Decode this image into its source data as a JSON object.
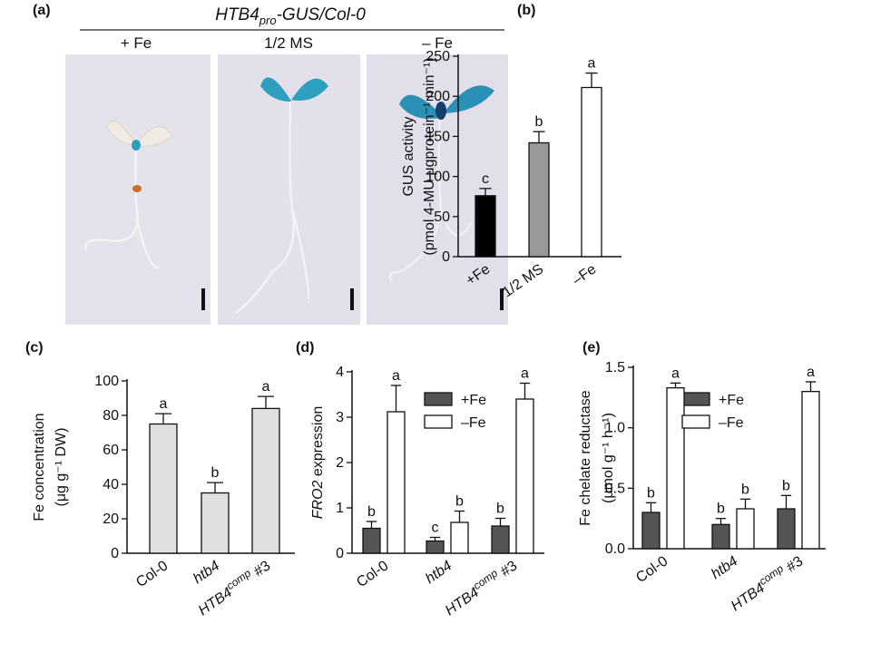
{
  "photo_panel": {
    "label": "(a)",
    "title": [
      "HTB4",
      "pro",
      "-GUS/Col-0"
    ],
    "conditions": [
      "+ Fe",
      "1/2 MS",
      "– Fe"
    ]
  },
  "chart_data": [
    {
      "type": "bar",
      "label": "(b)",
      "y_label": [
        [
          "GUS activity"
        ],
        [
          "(pmol 4-MU μgprotein⁻¹ min⁻¹)"
        ]
      ],
      "categories": [
        [
          "+Fe"
        ],
        [
          "1/2 MS"
        ],
        [
          "–Fe"
        ]
      ],
      "values": [
        76,
        142,
        211
      ],
      "errors": [
        9,
        14,
        18
      ],
      "letters": [
        "c",
        "b",
        "a"
      ],
      "colors": [
        "#000000",
        "#999999",
        "#ffffff"
      ],
      "ylim": [
        0,
        250
      ],
      "yticks": [
        0,
        50,
        100,
        150,
        200,
        250
      ]
    },
    {
      "type": "bar",
      "label": "(c)",
      "y_label": [
        [
          "Fe concentration"
        ],
        [
          "(μg g⁻¹ DW)"
        ]
      ],
      "categories": [
        [
          "Col-0"
        ],
        [
          "htb4"
        ],
        [
          "HTB4",
          "comp",
          " #3"
        ]
      ],
      "values": [
        75,
        35,
        84
      ],
      "errors": [
        6,
        6,
        7
      ],
      "letters": [
        "a",
        "b",
        "a"
      ],
      "color": "#e0e0e0",
      "ylim": [
        0,
        100
      ],
      "yticks": [
        0,
        20,
        40,
        60,
        80,
        100
      ]
    },
    {
      "type": "bar",
      "label": "(d)",
      "y_label": [
        [
          "FRO2",
          " expression"
        ]
      ],
      "categories": [
        [
          "Col-0"
        ],
        [
          "htb4"
        ],
        [
          "HTB4",
          "comp",
          " #3"
        ]
      ],
      "series": [
        {
          "name": "+Fe",
          "color": "#555555",
          "values": [
            0.55,
            0.27,
            0.6
          ],
          "errors": [
            0.15,
            0.08,
            0.17
          ],
          "letters": [
            "b",
            "c",
            "b"
          ]
        },
        {
          "name": "–Fe",
          "color": "#ffffff",
          "values": [
            3.12,
            0.68,
            3.4
          ],
          "errors": [
            0.58,
            0.25,
            0.35
          ],
          "letters": [
            "a",
            "b",
            "a"
          ]
        }
      ],
      "ylim": [
        0,
        4
      ],
      "yticks": [
        0,
        1,
        2,
        3,
        4
      ]
    },
    {
      "type": "bar",
      "label": "(e)",
      "y_label": [
        [
          "Fe chelate reductase"
        ],
        [
          "(μmol g⁻¹ h⁻¹)"
        ]
      ],
      "categories": [
        [
          "Col-0"
        ],
        [
          "htb4"
        ],
        [
          "HTB4",
          "comp",
          " #3"
        ]
      ],
      "series": [
        {
          "name": "+Fe",
          "color": "#555555",
          "values": [
            0.3,
            0.2,
            0.33
          ],
          "errors": [
            0.08,
            0.05,
            0.11
          ],
          "letters": [
            "b",
            "b",
            "b"
          ]
        },
        {
          "name": "–Fe",
          "color": "#ffffff",
          "values": [
            1.33,
            0.33,
            1.3
          ],
          "errors": [
            0.04,
            0.08,
            0.08
          ],
          "letters": [
            "a",
            "b",
            "a"
          ]
        }
      ],
      "ylim": [
        0,
        1.5
      ],
      "yticks": [
        {
          "value": 0,
          "label": "0.0"
        },
        {
          "value": 0.5,
          "label": "0.5"
        },
        {
          "value": 1,
          "label": "1.0"
        },
        {
          "value": 1.5,
          "label": "1.5"
        }
      ]
    }
  ]
}
